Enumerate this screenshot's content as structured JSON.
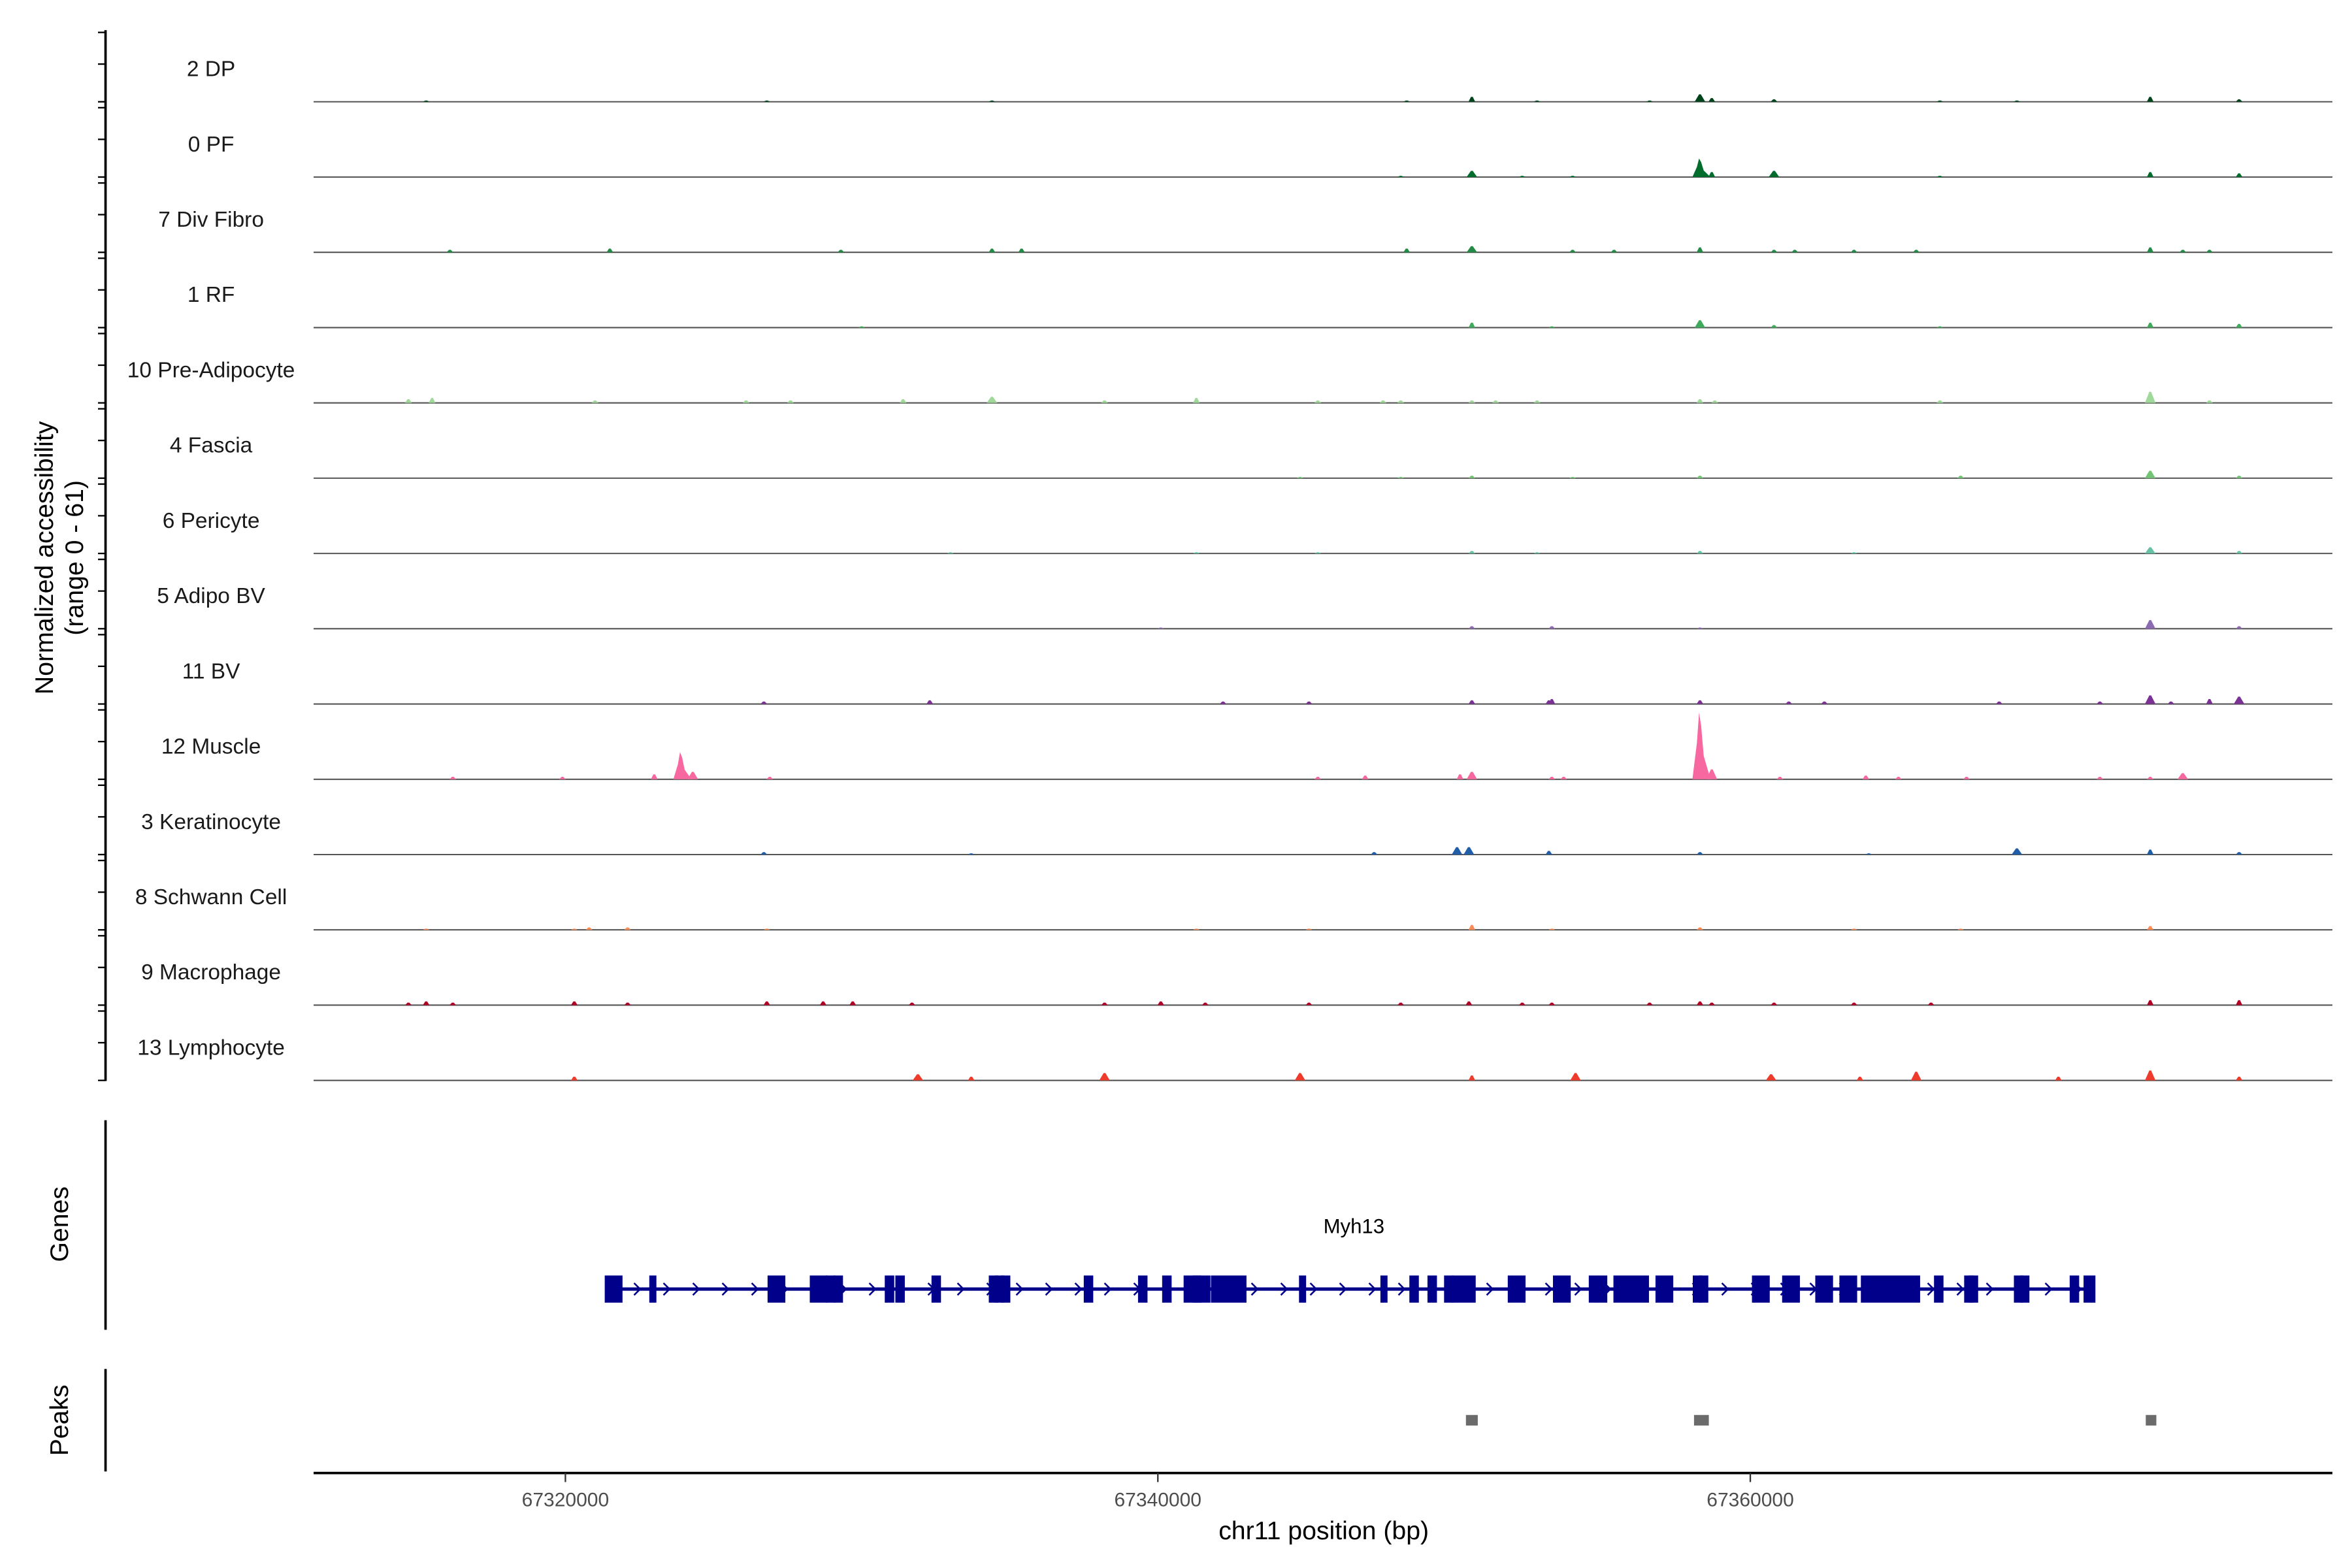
{
  "chart_data": {
    "type": "area",
    "title": "",
    "ylabel": "Normalized accessibility",
    "ylabel_range": "(range 0 - 61)",
    "ylim": [
      0,
      61
    ],
    "xlabel": "chr11 position (bp)",
    "xlim": [
      67311500,
      67379650
    ],
    "xticks": [
      67320000,
      67340000,
      67360000
    ],
    "xtick_labels": [
      "67320000",
      "67340000",
      "67360000"
    ],
    "genes_label": "Genes",
    "peaks_label": "Peaks",
    "tracks": [
      {
        "name": "2 DP",
        "color": "#00441b",
        "peaks": [
          [
            67315300,
            1
          ],
          [
            67326800,
            1
          ],
          [
            67334400,
            1
          ],
          [
            67348400,
            1
          ],
          [
            67350600,
            4
          ],
          [
            67352800,
            1
          ],
          [
            67356600,
            1
          ],
          [
            67358300,
            6
          ],
          [
            67358700,
            3
          ],
          [
            67360800,
            2
          ],
          [
            67366400,
            1
          ],
          [
            67369000,
            1
          ],
          [
            67373500,
            4
          ],
          [
            67376500,
            2
          ]
        ]
      },
      {
        "name": "0 PF",
        "color": "#006d2c",
        "peaks": [
          [
            67348200,
            1
          ],
          [
            67350600,
            5
          ],
          [
            67352300,
            1
          ],
          [
            67354000,
            1
          ],
          [
            67358300,
            15
          ],
          [
            67358700,
            4
          ],
          [
            67360800,
            5
          ],
          [
            67366400,
            1
          ],
          [
            67373500,
            4
          ],
          [
            67376500,
            3
          ]
        ]
      },
      {
        "name": "7 Div Fibro",
        "color": "#238b45",
        "peaks": [
          [
            67316100,
            2
          ],
          [
            67321500,
            3
          ],
          [
            67329300,
            2
          ],
          [
            67334400,
            3
          ],
          [
            67335400,
            3
          ],
          [
            67348400,
            3
          ],
          [
            67350600,
            5
          ],
          [
            67354000,
            2
          ],
          [
            67355400,
            2
          ],
          [
            67358300,
            4
          ],
          [
            67360800,
            2
          ],
          [
            67361500,
            2
          ],
          [
            67363500,
            2
          ],
          [
            67365600,
            2
          ],
          [
            67373500,
            4
          ],
          [
            67374600,
            2
          ],
          [
            67375500,
            2
          ]
        ]
      },
      {
        "name": "1 RF",
        "color": "#41ab5d",
        "peaks": [
          [
            67330000,
            1
          ],
          [
            67350600,
            4
          ],
          [
            67353300,
            1
          ],
          [
            67358300,
            6
          ],
          [
            67360800,
            2
          ],
          [
            67366400,
            1
          ],
          [
            67373500,
            4
          ],
          [
            67376500,
            3
          ]
        ]
      },
      {
        "name": "10 Pre-Adipocyte",
        "color": "#a1d99b",
        "peaks": [
          [
            67314700,
            3
          ],
          [
            67315500,
            4
          ],
          [
            67321000,
            2
          ],
          [
            67326100,
            2
          ],
          [
            67327600,
            2
          ],
          [
            67331400,
            3
          ],
          [
            67334400,
            5
          ],
          [
            67338200,
            2
          ],
          [
            67341300,
            4
          ],
          [
            67345400,
            2
          ],
          [
            67347600,
            2
          ],
          [
            67348200,
            2
          ],
          [
            67350600,
            2
          ],
          [
            67351400,
            2
          ],
          [
            67352800,
            2
          ],
          [
            67358300,
            3
          ],
          [
            67358800,
            2
          ],
          [
            67366400,
            2
          ],
          [
            67373500,
            9
          ],
          [
            67375500,
            2
          ]
        ]
      },
      {
        "name": "4 Fascia",
        "color": "#74c476",
        "peaks": [
          [
            67344800,
            1
          ],
          [
            67348200,
            1
          ],
          [
            67350600,
            2
          ],
          [
            67354000,
            1
          ],
          [
            67358300,
            2
          ],
          [
            67367100,
            2
          ],
          [
            67373500,
            6
          ],
          [
            67376500,
            2
          ]
        ]
      },
      {
        "name": "6 Pericyte",
        "color": "#66c2a4",
        "peaks": [
          [
            67333000,
            1
          ],
          [
            67341300,
            1
          ],
          [
            67345400,
            1
          ],
          [
            67350600,
            2
          ],
          [
            67352800,
            1
          ],
          [
            67358300,
            2
          ],
          [
            67363500,
            1
          ],
          [
            67373500,
            5
          ],
          [
            67376500,
            2
          ]
        ]
      },
      {
        "name": "5 Adipo BV",
        "color": "#8c6bb1",
        "peaks": [
          [
            67340100,
            1
          ],
          [
            67350600,
            2
          ],
          [
            67353300,
            2
          ],
          [
            67358300,
            1
          ],
          [
            67373500,
            7
          ],
          [
            67376500,
            2
          ]
        ]
      },
      {
        "name": "11 BV",
        "color": "#7b3294",
        "peaks": [
          [
            67326700,
            2
          ],
          [
            67332300,
            3
          ],
          [
            67342200,
            2
          ],
          [
            67345100,
            2
          ],
          [
            67350600,
            3
          ],
          [
            67353200,
            3
          ],
          [
            67353300,
            4
          ],
          [
            67358300,
            3
          ],
          [
            67361300,
            2
          ],
          [
            67362500,
            2
          ],
          [
            67368400,
            2
          ],
          [
            67371800,
            2
          ],
          [
            67373500,
            7
          ],
          [
            67374200,
            2
          ],
          [
            67375500,
            4
          ],
          [
            67376500,
            6
          ]
        ]
      },
      {
        "name": "12 Muscle",
        "color": "#f768a1",
        "peaks": [
          [
            67316200,
            2
          ],
          [
            67319900,
            2
          ],
          [
            67323000,
            4
          ],
          [
            67323900,
            22
          ],
          [
            67324300,
            6
          ],
          [
            67326900,
            2
          ],
          [
            67345400,
            2
          ],
          [
            67347000,
            3
          ],
          [
            67350200,
            4
          ],
          [
            67350600,
            6
          ],
          [
            67353300,
            2
          ],
          [
            67353700,
            2
          ],
          [
            67358300,
            54
          ],
          [
            67358700,
            8
          ],
          [
            67361000,
            2
          ],
          [
            67363900,
            3
          ],
          [
            67365000,
            2
          ],
          [
            67367300,
            2
          ],
          [
            67371800,
            2
          ],
          [
            67373500,
            2
          ],
          [
            67374600,
            5
          ]
        ]
      },
      {
        "name": "3 Keratinocyte",
        "color": "#225ea8",
        "peaks": [
          [
            67326700,
            2
          ],
          [
            67333700,
            1
          ],
          [
            67347300,
            2
          ],
          [
            67350100,
            6
          ],
          [
            67350500,
            6
          ],
          [
            67353200,
            3
          ],
          [
            67358300,
            2
          ],
          [
            67364000,
            1
          ],
          [
            67369000,
            5
          ],
          [
            67373500,
            4
          ],
          [
            67376500,
            2
          ]
        ]
      },
      {
        "name": "8 Schwann Cell",
        "color": "#fc8d59",
        "peaks": [
          [
            67315300,
            1
          ],
          [
            67320300,
            1
          ],
          [
            67320800,
            2
          ],
          [
            67322100,
            2
          ],
          [
            67326800,
            1
          ],
          [
            67341300,
            1
          ],
          [
            67345100,
            1
          ],
          [
            67350600,
            4
          ],
          [
            67353300,
            1
          ],
          [
            67358300,
            2
          ],
          [
            67363500,
            1
          ],
          [
            67367100,
            1
          ],
          [
            67373500,
            3
          ]
        ]
      },
      {
        "name": "9 Macrophage",
        "color": "#b10026",
        "peaks": [
          [
            67314700,
            2
          ],
          [
            67315300,
            3
          ],
          [
            67316200,
            2
          ],
          [
            67320300,
            3
          ],
          [
            67322100,
            2
          ],
          [
            67326800,
            3
          ],
          [
            67328700,
            3
          ],
          [
            67329700,
            3
          ],
          [
            67331700,
            2
          ],
          [
            67338200,
            2
          ],
          [
            67340100,
            3
          ],
          [
            67341600,
            2
          ],
          [
            67345100,
            2
          ],
          [
            67348200,
            2
          ],
          [
            67350500,
            3
          ],
          [
            67352300,
            2
          ],
          [
            67353300,
            2
          ],
          [
            67356600,
            2
          ],
          [
            67358300,
            3
          ],
          [
            67358700,
            2
          ],
          [
            67360800,
            2
          ],
          [
            67363500,
            2
          ],
          [
            67366100,
            2
          ],
          [
            67373500,
            4
          ],
          [
            67376500,
            4
          ]
        ]
      },
      {
        "name": "13 Lymphocyte",
        "color": "#ef3b2c",
        "peaks": [
          [
            67320300,
            3
          ],
          [
            67331900,
            5
          ],
          [
            67333700,
            3
          ],
          [
            67338200,
            6
          ],
          [
            67344800,
            6
          ],
          [
            67350600,
            4
          ],
          [
            67354100,
            6
          ],
          [
            67360700,
            5
          ],
          [
            67363700,
            3
          ],
          [
            67365600,
            7
          ],
          [
            67370400,
            3
          ],
          [
            67373500,
            8
          ],
          [
            67376500,
            3
          ]
        ]
      }
    ],
    "gene": {
      "name": "Myh13",
      "color": "#00008b",
      "strand": "+",
      "start": 67321530,
      "end": 67371550,
      "exons": [
        [
          67321628,
          150
        ],
        [
          67322952,
          60
        ],
        [
          67327125,
          150
        ],
        [
          67328550,
          150
        ],
        [
          67328957,
          80
        ],
        [
          67329211,
          80
        ],
        [
          67330941,
          80
        ],
        [
          67331298,
          80
        ],
        [
          67332519,
          80
        ],
        [
          67334453,
          80
        ],
        [
          67334656,
          80
        ],
        [
          67334860,
          80
        ],
        [
          67337659,
          80
        ],
        [
          67339491,
          80
        ],
        [
          67340305,
          80
        ],
        [
          67341170,
          150
        ],
        [
          67341476,
          150
        ],
        [
          67342392,
          300
        ],
        [
          67344885,
          60
        ],
        [
          67347633,
          60
        ],
        [
          67348651,
          80
        ],
        [
          67349262,
          80
        ],
        [
          67349822,
          80
        ],
        [
          67350330,
          200
        ],
        [
          67352112,
          150
        ],
        [
          67353638,
          150
        ],
        [
          67354707,
          80
        ],
        [
          67355012,
          80
        ],
        [
          67355979,
          300
        ],
        [
          67357099,
          150
        ],
        [
          67358218,
          80
        ],
        [
          67358422,
          80
        ],
        [
          67360356,
          150
        ],
        [
          67361374,
          150
        ],
        [
          67362493,
          150
        ],
        [
          67363307,
          150
        ],
        [
          67364732,
          500
        ],
        [
          67366361,
          80
        ],
        [
          67367379,
          80
        ],
        [
          67367531,
          80
        ],
        [
          67369058,
          80
        ],
        [
          67369262,
          80
        ],
        [
          67370941,
          80
        ],
        [
          67371450,
          100
        ]
      ]
    },
    "peak_regions": [
      [
        67350400,
        67350800
      ],
      [
        67358100,
        67358600
      ],
      [
        67373350,
        67373650
      ]
    ]
  }
}
